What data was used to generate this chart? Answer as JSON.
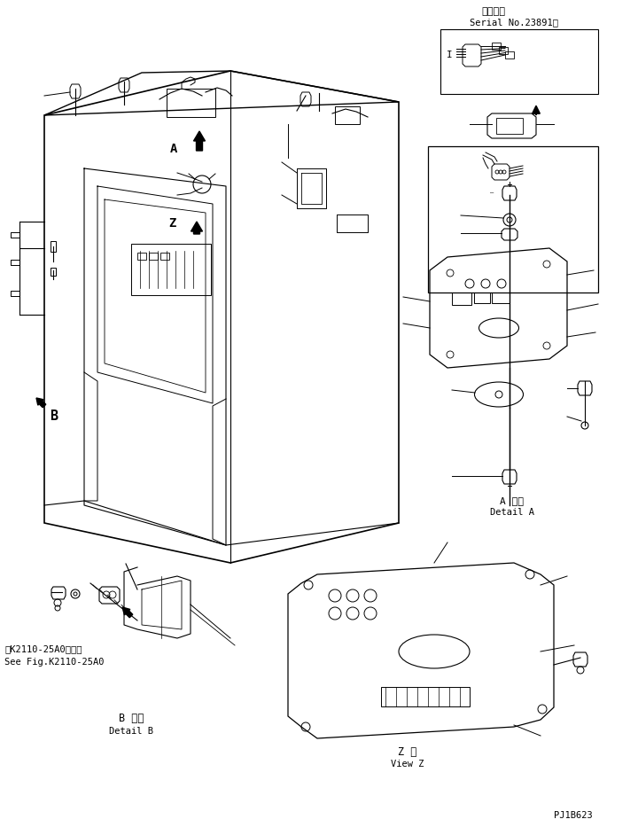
{
  "bg_color": "#ffffff",
  "line_color": "#000000",
  "title_top_jp": "適用号機",
  "title_top_en": "Serial No.23891～",
  "label_A_jp": "A 詳細",
  "label_A_en": "Detail A",
  "label_B_jp": "B 詳細",
  "label_B_en": "Detail B",
  "label_Z_jp": "Z 規",
  "label_Z_en": "View Z",
  "ref_text_jp": "第K2110-25A0図参照",
  "ref_text_en": "See Fig.K2110-25A0",
  "part_number": "PJ1B623",
  "fig_width": 7.2,
  "fig_height": 9.33
}
